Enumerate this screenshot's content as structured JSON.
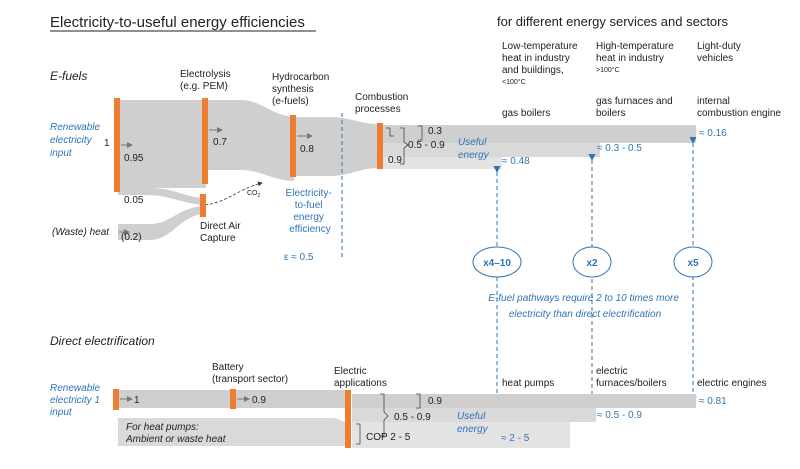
{
  "title": "Electricity-to-useful energy efficiencies",
  "services_header": "for different energy services and sectors",
  "services": {
    "low_temp": [
      "Low-temperature",
      "heat in industry",
      "and buildings,",
      "<100°C"
    ],
    "high_temp": [
      "High-temperature",
      "heat in industry",
      ">100°C"
    ],
    "ldv": [
      "Light-duty",
      "vehicles"
    ]
  },
  "efuels": {
    "section_label": "E-fuels",
    "input_label": [
      "Renewable",
      "electricity",
      "input"
    ],
    "input_value": "1",
    "electrolysis_label": [
      "Electrolysis",
      "(e.g. PEM)"
    ],
    "hydrocarbon_label": [
      "Hydrocarbon",
      "synthesis",
      "(e-fuels)"
    ],
    "combustion_label": [
      "Combustion",
      "processes"
    ],
    "v_095": "0.95",
    "v_07": "0.7",
    "v_08": "0.8",
    "v_005": "0.05",
    "co2_label": "CO",
    "co2_sub": "2",
    "dac_label": [
      "Direct Air",
      "Capture"
    ],
    "waste_heat_label": "(Waste) heat",
    "v_02": "(0.2)",
    "efficiency_label": [
      "Electricity-",
      "to-fuel",
      "energy",
      "efficiency"
    ],
    "epsilon": "ε ≈ 0.5",
    "comb_a": "0.3",
    "comb_b": "0.5 - 0.9",
    "comb_c": "0.9",
    "useful_label": [
      "Useful",
      "energy"
    ],
    "gas_boilers": "gas boilers",
    "gas_furnaces": [
      "gas furnaces and",
      "boilers"
    ],
    "ice": [
      "internal",
      "combustion engine"
    ],
    "out_low": "≈ 0.48",
    "out_high": "≈ 0.3 - 0.5",
    "out_ldv": "≈ 0.16"
  },
  "factors": [
    "x4–10",
    "x2",
    "x5"
  ],
  "message": [
    "E-fuel pathways require 2 to 10 times more",
    "electricity than direct electrification"
  ],
  "direct": {
    "section_label": "Direct electrification",
    "input_label": [
      "Renewable",
      "electricity 1",
      "input"
    ],
    "v_1": "1",
    "battery_label": [
      "Battery",
      "(transport sector)"
    ],
    "v_09_batt": "0.9",
    "apps_label": [
      "Electric",
      "applications"
    ],
    "ambient_label": [
      "For heat pumps:",
      "Ambient or waste heat"
    ],
    "app_a": "0.9",
    "app_b": "0.5 - 0.9",
    "app_c": "COP 2 - 5",
    "useful_label": [
      "Useful",
      "energy"
    ],
    "heat_pumps": "heat pumps",
    "furnaces": [
      "electric",
      "furnaces/boilers"
    ],
    "engines": "electric engines",
    "out_low": "≈ 2 - 5",
    "out_high": "≈ 0.5 - 0.9",
    "out_ldv": "≈ 0.81"
  },
  "colors": {
    "flow": "#cfcfcf",
    "flow_dark": "#b8b8b8",
    "node": "#ed7d31",
    "accent": "#2e75b6"
  }
}
